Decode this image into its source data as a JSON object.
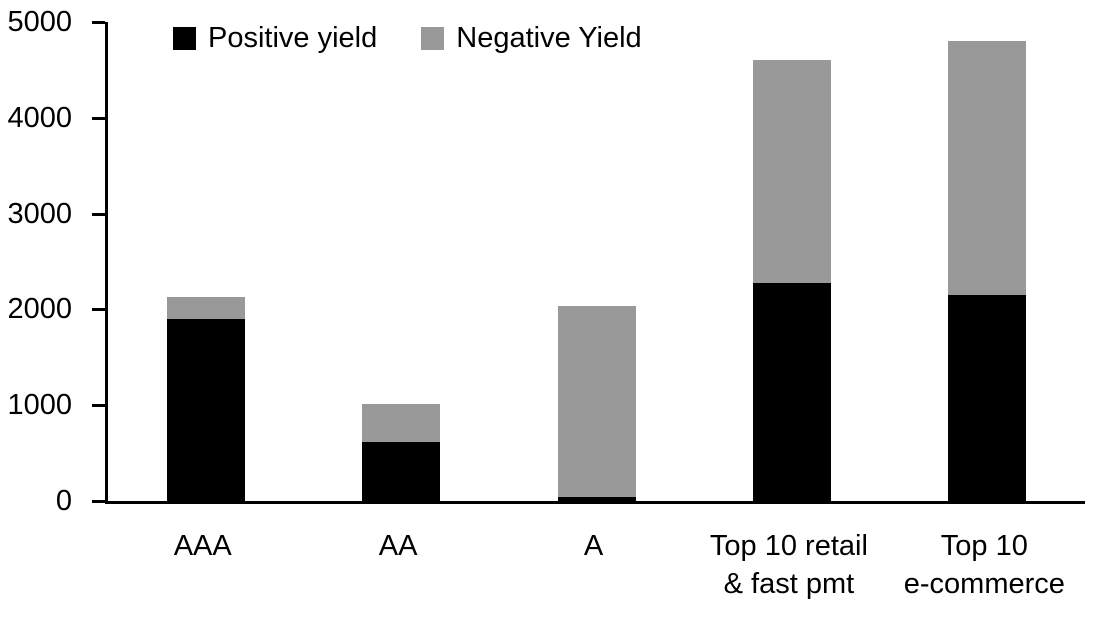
{
  "chart_data": {
    "type": "bar",
    "stacked": true,
    "title": "",
    "xlabel": "",
    "ylabel": "",
    "grid": false,
    "legend_position": "top-left",
    "categories": [
      "AAA",
      "AA",
      "A",
      "Top 10 retail & fast pmt",
      "Top 10 e-commerce"
    ],
    "category_label_lines": [
      [
        "AAA"
      ],
      [
        "AA"
      ],
      [
        "A"
      ],
      [
        "Top 10 retail",
        "& fast pmt"
      ],
      [
        "Top 10",
        "e-commerce"
      ]
    ],
    "series": [
      {
        "name": "Positive yield",
        "color": "#000000",
        "values": [
          1900,
          615,
          40,
          2280,
          2150
        ]
      },
      {
        "name": "Negative Yield",
        "color": "#999999",
        "values": [
          225,
          395,
          2000,
          2320,
          2650
        ]
      }
    ],
    "ylim": [
      0,
      5000
    ],
    "ytick_interval": 1000,
    "ytick_labels": [
      "0",
      "1000",
      "2000",
      "3000",
      "4000",
      "5000"
    ],
    "colors": {
      "axis": "#000000",
      "background": "#ffffff"
    }
  }
}
